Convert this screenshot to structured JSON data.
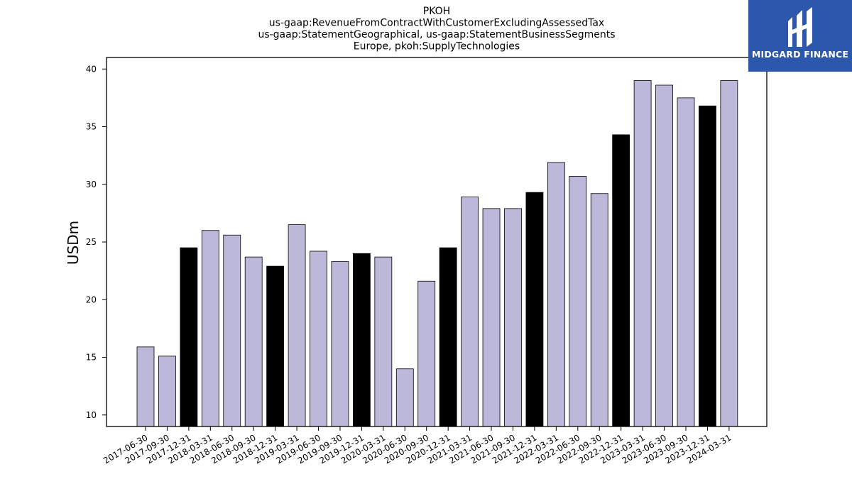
{
  "brand": {
    "name": "MIDGARD FINANCE",
    "logo_icon": "midgard-logo-icon",
    "bg_color": "#2b57ad"
  },
  "chart_data": {
    "type": "bar",
    "title_lines": [
      "PKOH",
      "us-gaap:RevenueFromContractWithCustomerExcludingAssessedTax",
      "us-gaap:StatementGeographical, us-gaap:StatementBusinessSegments",
      "Europe, pkoh:SupplyTechnologies"
    ],
    "ylabel": "USDm",
    "ylim": [
      9,
      41
    ],
    "yticks": [
      10,
      15,
      20,
      25,
      30,
      35,
      40
    ],
    "grid": false,
    "colors": {
      "quarter": "#bcb8d9",
      "year_end": "#000000",
      "edge": "#000000"
    },
    "categories": [
      "2017-06-30",
      "2017-09-30",
      "2017-12-31",
      "2018-03-31",
      "2018-06-30",
      "2018-09-30",
      "2018-12-31",
      "2019-03-31",
      "2019-06-30",
      "2019-09-30",
      "2019-12-31",
      "2020-03-31",
      "2020-06-30",
      "2020-09-30",
      "2020-12-31",
      "2021-03-31",
      "2021-06-30",
      "2021-09-30",
      "2021-12-31",
      "2022-03-31",
      "2022-06-30",
      "2022-09-30",
      "2022-12-31",
      "2023-03-31",
      "2023-06-30",
      "2023-09-30",
      "2023-12-31",
      "2024-03-31"
    ],
    "values": [
      15.9,
      15.1,
      24.5,
      26.0,
      25.6,
      23.7,
      22.9,
      26.5,
      24.2,
      23.3,
      24.0,
      23.7,
      14.0,
      21.6,
      24.5,
      28.9,
      27.9,
      27.9,
      29.3,
      31.9,
      30.7,
      29.2,
      34.3,
      39.0,
      38.6,
      37.5,
      36.8,
      39.0
    ]
  }
}
